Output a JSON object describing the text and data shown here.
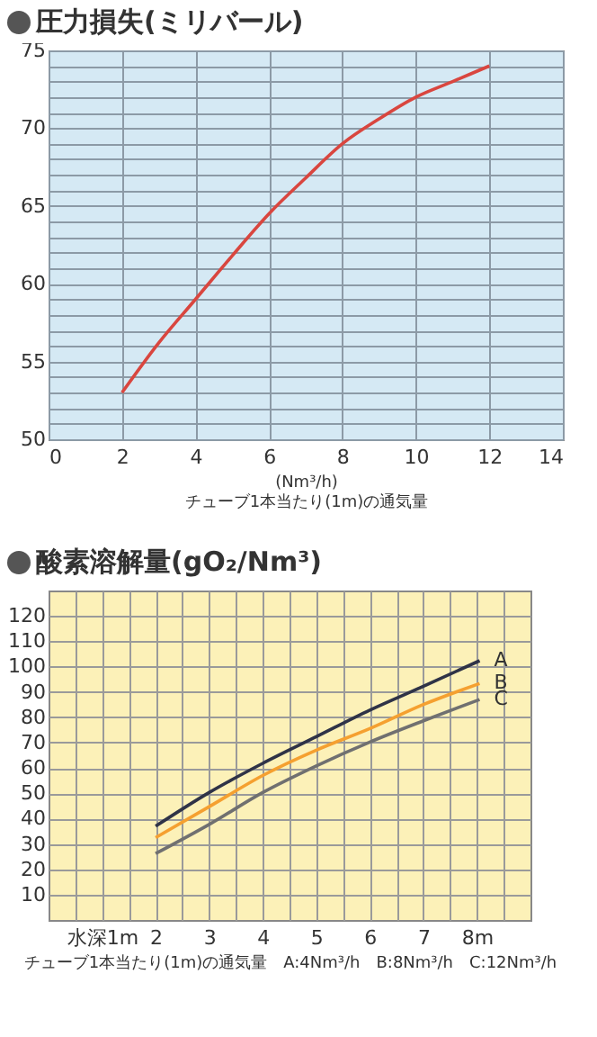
{
  "chart_data": [
    {
      "type": "line",
      "title": "圧力損失(ミリバール)",
      "xlabel": "(Nm³/h)\nチューブ1本当たり(1m)の通気量",
      "x": [
        2,
        3,
        4,
        5,
        6,
        7,
        8,
        9,
        10,
        11,
        12
      ],
      "series": [
        {
          "color": "#d9463f",
          "values": [
            53,
            56.2,
            59,
            61.8,
            64.5,
            66.8,
            69,
            70.6,
            72,
            73,
            74
          ]
        }
      ],
      "xlim": [
        0,
        14
      ],
      "xticks": [
        0,
        2,
        4,
        6,
        8,
        10,
        12,
        14
      ],
      "ylim": [
        50,
        75
      ],
      "yticks": [
        50,
        {
          "value": 51,
          "label": null
        },
        {
          "value": 52,
          "label": null
        },
        {
          "value": 53,
          "label": null
        },
        {
          "value": 54,
          "label": null
        },
        55,
        {
          "value": 56,
          "label": null
        },
        {
          "value": 57,
          "label": null
        },
        {
          "value": 58,
          "label": null
        },
        {
          "value": 59,
          "label": null
        },
        60,
        {
          "value": 61,
          "label": null
        },
        {
          "value": 62,
          "label": null
        },
        {
          "value": 63,
          "label": null
        },
        {
          "value": 64,
          "label": null
        },
        65,
        {
          "value": 66,
          "label": null
        },
        {
          "value": 67,
          "label": null
        },
        {
          "value": 68,
          "label": null
        },
        {
          "value": 69,
          "label": null
        },
        70,
        {
          "value": 71,
          "label": null
        },
        {
          "value": 72,
          "label": null
        },
        {
          "value": 73,
          "label": null
        },
        {
          "value": 74,
          "label": null
        },
        75
      ],
      "grid": true,
      "marker": "none",
      "line_style": "solid"
    },
    {
      "type": "line",
      "title": "酸素溶解量(gO₂/Nm³)",
      "xlabel": "チューブ1本当たり(1m)の通気量　A:4Nm³/h　B:8Nm³/h　C:12Nm³/h",
      "x": [
        2,
        3,
        4,
        5,
        6,
        7,
        8.05
      ],
      "series": [
        {
          "name": "A",
          "color": "#2f3347",
          "values": [
            37,
            50.3,
            61.8,
            72.3,
            82.8,
            92.2,
            102.3
          ]
        },
        {
          "name": "B",
          "color": "#f5a030",
          "values": [
            32.5,
            44.7,
            57,
            67,
            75.5,
            85,
            93.3
          ]
        },
        {
          "name": "C",
          "color": "#707070",
          "values": [
            26.2,
            37.7,
            50.3,
            60.8,
            70.2,
            78.6,
            87
          ]
        }
      ],
      "xlim": [
        0,
        9
      ],
      "xticks": [
        {
          "value": 0.5,
          "label": null
        },
        {
          "value": 1,
          "label": "水深1m"
        },
        {
          "value": 1.5,
          "label": null
        },
        2,
        {
          "value": 2.5,
          "label": null
        },
        3,
        {
          "value": 3.5,
          "label": null
        },
        4,
        {
          "value": 4.5,
          "label": null
        },
        5,
        {
          "value": 5.5,
          "label": null
        },
        6,
        {
          "value": 6.5,
          "label": null
        },
        7,
        {
          "value": 7.5,
          "label": null
        },
        {
          "value": 8,
          "label": "8m"
        },
        {
          "value": 8.5,
          "label": null
        }
      ],
      "ylim": [
        0,
        130
      ],
      "yticks": [
        10,
        20,
        30,
        40,
        50,
        60,
        70,
        80,
        90,
        100,
        110,
        120
      ],
      "grid": true,
      "marker": "none",
      "line_style": "solid"
    }
  ]
}
